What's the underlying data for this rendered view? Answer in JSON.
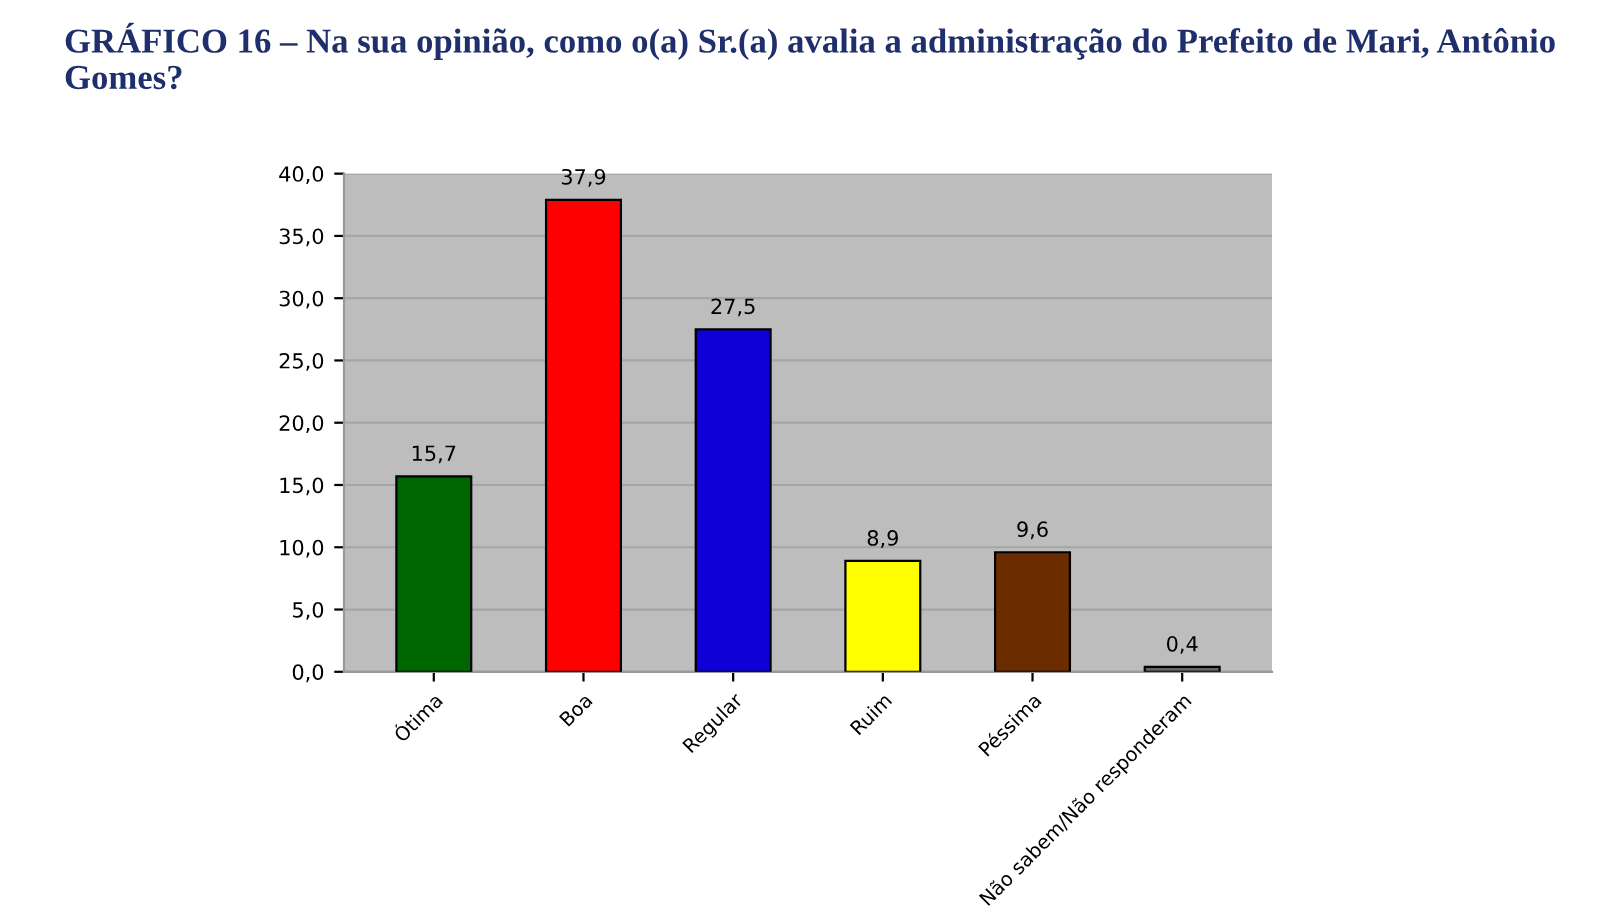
{
  "chart_data": {
    "type": "bar",
    "title": "GRÁFICO 16 – Na sua opinião, como o(a) Sr.(a) avalia a administração do Prefeito de Mari, Antônio Gomes?",
    "categories": [
      "Ótima",
      "Boa",
      "Regular",
      "Ruim",
      "Péssima",
      "Não sabem/Não responderam"
    ],
    "values": [
      15.7,
      37.9,
      27.5,
      8.9,
      9.6,
      0.4
    ],
    "colors": [
      "#006600",
      "#ff0000",
      "#1000d8",
      "#ffff00",
      "#6b2c00",
      "#666666"
    ],
    "value_labels": [
      "15,7",
      "37,9",
      "27,5",
      "8,9",
      "9,6",
      "0,4"
    ],
    "ylim": [
      0,
      40
    ],
    "yticks": [
      {
        "value": 0,
        "label": "0,0"
      },
      {
        "value": 5,
        "label": "5,0"
      },
      {
        "value": 10,
        "label": "10,0"
      },
      {
        "value": 15,
        "label": "15,0"
      },
      {
        "value": 20,
        "label": "20,0"
      },
      {
        "value": 25,
        "label": "25,0"
      },
      {
        "value": 30,
        "label": "30,0"
      },
      {
        "value": 35,
        "label": "35,0"
      },
      {
        "value": 40,
        "label": "40,0"
      }
    ],
    "grid": "y"
  }
}
